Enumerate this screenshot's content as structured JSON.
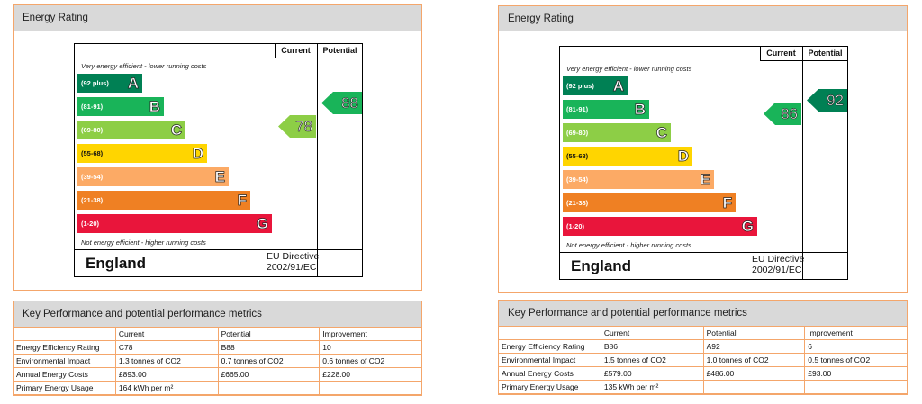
{
  "panels": [
    {
      "energy_title": "Energy Rating",
      "col_current": "Current",
      "col_potential": "Potential",
      "top_note": "Very energy efficient - lower running costs",
      "bottom_note": "Not energy efficient - higher running costs",
      "bands": [
        {
          "range": "(92 plus)",
          "letter": "A",
          "color": "#008054"
        },
        {
          "range": "(81-91)",
          "letter": "B",
          "color": "#19b459"
        },
        {
          "range": "(69-80)",
          "letter": "C",
          "color": "#8dce46"
        },
        {
          "range": "(55-68)",
          "letter": "D",
          "color": "#ffd500"
        },
        {
          "range": "(39-54)",
          "letter": "E",
          "color": "#fcaa65"
        },
        {
          "range": "(21-38)",
          "letter": "F",
          "color": "#ef8023"
        },
        {
          "range": "(1-20)",
          "letter": "G",
          "color": "#e9153b"
        }
      ],
      "current_rating": "78",
      "current_band": "C",
      "potential_rating": "88",
      "potential_band": "B",
      "country": "England",
      "directive_line1": "EU Directive",
      "directive_line2": "2002/91/EC",
      "kpi_title": "Key Performance and potential performance metrics",
      "kpi_headers": [
        "",
        "Current",
        "Potential",
        "Improvement"
      ],
      "kpi_rows": [
        [
          "Energy Efficiency Rating",
          "C78",
          "B88",
          "10"
        ],
        [
          "Environmental Impact",
          "1.3 tonnes of CO2",
          "0.7 tonnes of CO2",
          "0.6 tonnes of CO2"
        ],
        [
          "Annual Energy Costs",
          "£893.00",
          "£665.00",
          "£228.00"
        ],
        [
          "Primary Energy Usage",
          "164 kWh per m²",
          "",
          ""
        ]
      ]
    },
    {
      "energy_title": "Energy Rating",
      "col_current": "Current",
      "col_potential": "Potential",
      "top_note": "Very energy efficient - lower running costs",
      "bottom_note": "Not energy efficient - higher running costs",
      "bands": [
        {
          "range": "(92 plus)",
          "letter": "A",
          "color": "#008054"
        },
        {
          "range": "(81-91)",
          "letter": "B",
          "color": "#19b459"
        },
        {
          "range": "(69-80)",
          "letter": "C",
          "color": "#8dce46"
        },
        {
          "range": "(55-68)",
          "letter": "D",
          "color": "#ffd500"
        },
        {
          "range": "(39-54)",
          "letter": "E",
          "color": "#fcaa65"
        },
        {
          "range": "(21-38)",
          "letter": "F",
          "color": "#ef8023"
        },
        {
          "range": "(1-20)",
          "letter": "G",
          "color": "#e9153b"
        }
      ],
      "current_rating": "86",
      "current_band": "B",
      "potential_rating": "92",
      "potential_band": "A",
      "country": "England",
      "directive_line1": "EU Directive",
      "directive_line2": "2002/91/EC",
      "kpi_title": "Key Performance and potential performance metrics",
      "kpi_headers": [
        "",
        "Current",
        "Potential",
        "Improvement"
      ],
      "kpi_rows": [
        [
          "Energy Efficiency Rating",
          "B86",
          "A92",
          "6"
        ],
        [
          "Environmental Impact",
          "1.5 tonnes of CO2",
          "1.0 tonnes of CO2",
          "0.5 tonnes of CO2"
        ],
        [
          "Annual Energy Costs",
          "£579.00",
          "£486.00",
          "£93.00"
        ],
        [
          "Primary Energy Usage",
          "135 kWh per m²",
          "",
          ""
        ]
      ]
    }
  ]
}
